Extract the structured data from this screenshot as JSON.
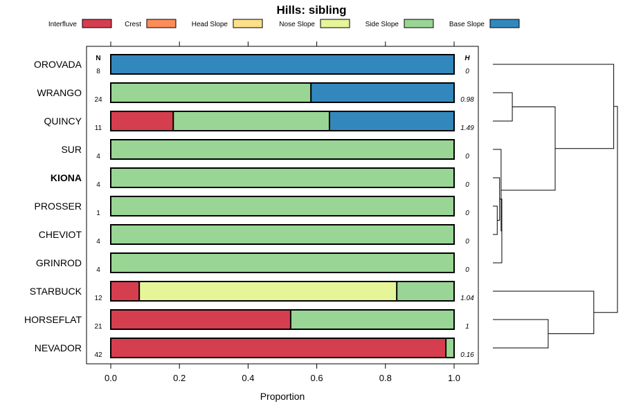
{
  "chart_data": {
    "type": "bar",
    "orientation": "horizontal",
    "stacked": true,
    "title": "Hills: sibling",
    "xlabel": "Proportion",
    "xlim": [
      0,
      1
    ],
    "x_ticks": [
      "0.0",
      "0.2",
      "0.4",
      "0.6",
      "0.8",
      "1.0"
    ],
    "n_header": "N",
    "h_header": "H",
    "legend": [
      {
        "name": "Interfluve",
        "color": "#D53E4F"
      },
      {
        "name": "Crest",
        "color": "#FC8D59"
      },
      {
        "name": "Head Slope",
        "color": "#FEE08B"
      },
      {
        "name": "Nose Slope",
        "color": "#E6F598"
      },
      {
        "name": "Side Slope",
        "color": "#99D594"
      },
      {
        "name": "Base Slope",
        "color": "#3288BD"
      }
    ],
    "rows": [
      {
        "name": "OROVADA",
        "n": "8",
        "h": "0",
        "bold": false,
        "segments": [
          {
            "series": "Base Slope",
            "value": 1.0
          }
        ]
      },
      {
        "name": "WRANGO",
        "n": "24",
        "h": "0.98",
        "bold": false,
        "segments": [
          {
            "series": "Side Slope",
            "value": 0.583
          },
          {
            "series": "Base Slope",
            "value": 0.417
          }
        ]
      },
      {
        "name": "QUINCY",
        "n": "11",
        "h": "1.49",
        "bold": false,
        "segments": [
          {
            "series": "Interfluve",
            "value": 0.182
          },
          {
            "series": "Side Slope",
            "value": 0.455
          },
          {
            "series": "Base Slope",
            "value": 0.364
          }
        ]
      },
      {
        "name": "SUR",
        "n": "4",
        "h": "0",
        "bold": false,
        "segments": [
          {
            "series": "Side Slope",
            "value": 1.0
          }
        ]
      },
      {
        "name": "KIONA",
        "n": "4",
        "h": "0",
        "bold": true,
        "segments": [
          {
            "series": "Side Slope",
            "value": 1.0
          }
        ]
      },
      {
        "name": "PROSSER",
        "n": "1",
        "h": "0",
        "bold": false,
        "segments": [
          {
            "series": "Side Slope",
            "value": 1.0
          }
        ]
      },
      {
        "name": "CHEVIOT",
        "n": "4",
        "h": "0",
        "bold": false,
        "segments": [
          {
            "series": "Side Slope",
            "value": 1.0
          }
        ]
      },
      {
        "name": "GRINROD",
        "n": "4",
        "h": "0",
        "bold": false,
        "segments": [
          {
            "series": "Side Slope",
            "value": 1.0
          }
        ]
      },
      {
        "name": "STARBUCK",
        "n": "12",
        "h": "1.04",
        "bold": false,
        "segments": [
          {
            "series": "Interfluve",
            "value": 0.083
          },
          {
            "series": "Nose Slope",
            "value": 0.75
          },
          {
            "series": "Side Slope",
            "value": 0.167
          }
        ]
      },
      {
        "name": "HORSEFLAT",
        "n": "21",
        "h": "1",
        "bold": false,
        "segments": [
          {
            "series": "Interfluve",
            "value": 0.524
          },
          {
            "series": "Side Slope",
            "value": 0.476
          }
        ]
      },
      {
        "name": "NEVADOR",
        "n": "42",
        "h": "0.16",
        "bold": false,
        "segments": [
          {
            "series": "Interfluve",
            "value": 0.976
          },
          {
            "series": "Side Slope",
            "value": 0.024
          }
        ]
      }
    ],
    "dendrogram": {
      "leaves": [
        "OROVADA",
        "WRANGO",
        "QUINCY",
        "SUR",
        "KIONA",
        "PROSSER",
        "CHEVIOT",
        "GRINROD",
        "STARBUCK",
        "HORSEFLAT",
        "NEVADOR"
      ],
      "max_height": 1.0,
      "merges": [
        {
          "a": "WRANGO",
          "b": "QUINCY",
          "height": 0.156
        },
        {
          "a": "PROSSER",
          "b": "CHEVIOT",
          "height": 0.035
        },
        {
          "a": "KIONA",
          "b": "m1",
          "height": 0.054
        },
        {
          "a": "m2",
          "b": "GRINROD",
          "height": 0.072
        },
        {
          "a": "SUR",
          "b": "m3",
          "height": 0.066
        },
        {
          "a": "m0",
          "b": "m4",
          "height": 0.5
        },
        {
          "a": "OROVADA",
          "b": "m5",
          "height": 0.97
        },
        {
          "a": "HORSEFLAT",
          "b": "NEVADOR",
          "height": 0.444
        },
        {
          "a": "STARBUCK",
          "b": "m7",
          "height": 0.81
        },
        {
          "a": "m6",
          "b": "m8",
          "height": 1.0
        }
      ]
    }
  }
}
